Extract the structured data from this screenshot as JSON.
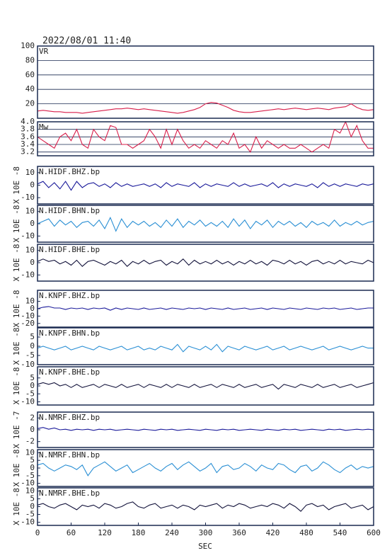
{
  "chart_data": {
    "type": "line",
    "title": "2022/08/01 11:40",
    "xlabel": "SEC",
    "xlim": [
      0,
      600
    ],
    "xticks": [
      0,
      60,
      120,
      180,
      240,
      300,
      360,
      420,
      480,
      540,
      600
    ],
    "x": [
      0,
      10,
      20,
      30,
      40,
      50,
      60,
      70,
      80,
      90,
      100,
      110,
      120,
      130,
      140,
      150,
      160,
      170,
      180,
      190,
      200,
      210,
      220,
      230,
      240,
      250,
      260,
      270,
      280,
      290,
      300,
      310,
      320,
      330,
      340,
      350,
      360,
      370,
      380,
      390,
      400,
      410,
      420,
      430,
      440,
      450,
      460,
      470,
      480,
      490,
      500,
      510,
      520,
      530,
      540,
      550,
      560,
      570,
      580,
      590,
      600
    ],
    "panels": [
      {
        "name": "VR",
        "color": "#d81e4a",
        "grid": true,
        "ylim": [
          0,
          100
        ],
        "yticks": [
          20,
          40,
          60,
          80,
          100
        ],
        "values": [
          10,
          11,
          10,
          9,
          9,
          8,
          8,
          8,
          7,
          8,
          9,
          10,
          11,
          12,
          13,
          13,
          14,
          13,
          12,
          13,
          12,
          11,
          10,
          9,
          8,
          7,
          8,
          10,
          12,
          15,
          20,
          22,
          21,
          18,
          15,
          11,
          9,
          8,
          8,
          9,
          10,
          11,
          12,
          13,
          12,
          13,
          14,
          13,
          12,
          13,
          14,
          13,
          12,
          14,
          15,
          16,
          20,
          15,
          12,
          11,
          12
        ]
      },
      {
        "name": "Mw",
        "color": "#d81e4a",
        "grid": true,
        "ylim": [
          3.1,
          4.0
        ],
        "yticks": [
          3.2,
          3.4,
          3.6,
          3.8,
          {
            "value": 4,
            "label": "4.0"
          }
        ],
        "values": [
          3.6,
          3.5,
          3.4,
          3.3,
          3.6,
          3.7,
          3.5,
          3.8,
          3.4,
          3.3,
          3.8,
          3.6,
          3.5,
          3.9,
          3.85,
          3.4,
          3.4,
          3.3,
          3.4,
          3.5,
          3.8,
          3.6,
          3.3,
          3.8,
          3.4,
          3.8,
          3.5,
          3.3,
          3.4,
          3.3,
          3.5,
          3.4,
          3.3,
          3.5,
          3.4,
          3.7,
          3.3,
          3.4,
          3.2,
          3.6,
          3.3,
          3.5,
          3.4,
          3.3,
          3.4,
          3.3,
          3.3,
          3.4,
          3.3,
          3.2,
          3.3,
          3.4,
          3.3,
          3.8,
          3.7,
          4.0,
          3.6,
          3.9,
          3.5,
          3.3,
          3.3
        ]
      },
      {
        "name": "N.HIDF.BHZ.bp",
        "ylabel": "X 10E -8",
        "color": "#1a1a9a",
        "grid": false,
        "ylim": [
          -15,
          15
        ],
        "yticks": [
          -10,
          0,
          10
        ],
        "values": [
          1,
          3,
          -2,
          2,
          -3,
          3,
          -4,
          3,
          -2,
          1,
          2,
          -1,
          1,
          -2,
          2,
          -1,
          1,
          -1,
          0,
          1,
          -1,
          1,
          -2,
          2,
          -1,
          1,
          0,
          -1,
          2,
          -2,
          1,
          -1,
          1,
          0,
          -1,
          2,
          -1,
          1,
          -1,
          0,
          1,
          -1,
          2,
          -2,
          1,
          -1,
          1,
          0,
          -1,
          1,
          -2,
          2,
          -1,
          1,
          -1,
          1,
          0,
          -1,
          1,
          0,
          1
        ]
      },
      {
        "name": "N.HIDF.BHN.bp",
        "ylabel": "X 10E -8",
        "color": "#2a8fd4",
        "grid": false,
        "ylim": [
          -15,
          15
        ],
        "yticks": [
          -10,
          0,
          10
        ],
        "values": [
          0,
          2,
          4,
          -2,
          3,
          -1,
          2,
          -3,
          1,
          2,
          -2,
          3,
          -4,
          5,
          -6,
          4,
          -3,
          2,
          -1,
          2,
          -2,
          1,
          -3,
          3,
          -2,
          4,
          -3,
          2,
          -1,
          3,
          -2,
          1,
          -2,
          2,
          -3,
          4,
          -2,
          3,
          -4,
          2,
          -1,
          3,
          -3,
          2,
          -1,
          2,
          -2,
          1,
          -3,
          2,
          -1,
          1,
          -2,
          3,
          -2,
          1,
          -1,
          2,
          -1,
          1,
          2
        ]
      },
      {
        "name": "N.HIDF.BHE.bp",
        "ylabel": "X 10E -8",
        "color": "#14143c",
        "grid": false,
        "ylim": [
          -15,
          15
        ],
        "yticks": [
          -10,
          0,
          10
        ],
        "values": [
          1,
          3,
          1,
          2,
          -1,
          1,
          -2,
          2,
          -3,
          1,
          2,
          0,
          -2,
          1,
          -1,
          2,
          -3,
          1,
          -1,
          2,
          -1,
          1,
          2,
          -2,
          1,
          -1,
          3,
          -2,
          2,
          -1,
          1,
          -1,
          2,
          -1,
          1,
          -2,
          1,
          -1,
          2,
          -1,
          1,
          -2,
          2,
          1,
          -1,
          2,
          -1,
          1,
          -2,
          1,
          2,
          -1,
          1,
          -1,
          2,
          -1,
          1,
          0,
          -1,
          2,
          0
        ]
      },
      {
        "name": "N.KNPF.BHZ.bp",
        "ylabel": "X 10E -8",
        "color": "#1a1a9a",
        "grid": false,
        "ylim": [
          -25,
          25
        ],
        "yticks": [
          -20,
          -10,
          0,
          10
        ],
        "values": [
          0,
          2,
          3,
          1,
          1,
          -1,
          1,
          0,
          1,
          -1,
          1,
          0,
          1,
          -2,
          1,
          -1,
          1,
          0,
          -1,
          1,
          -1,
          0,
          1,
          -1,
          1,
          0,
          -1,
          1,
          0,
          1,
          -1,
          1,
          0,
          -1,
          1,
          -1,
          0,
          1,
          -1,
          0,
          1,
          -1,
          1,
          0,
          -1,
          1,
          0,
          -1,
          1,
          0,
          -1,
          1,
          0,
          1,
          -1,
          0,
          1,
          -1,
          0,
          1,
          1
        ]
      },
      {
        "name": "N.KNPF.BHN.bp",
        "ylabel": "X 10E -8",
        "color": "#2a8fd4",
        "grid": false,
        "ylim": [
          -10,
          10
        ],
        "yticks": [
          -10,
          -5,
          0,
          5
        ],
        "values": [
          -1,
          0,
          -1,
          -2,
          -1,
          0,
          -2,
          -1,
          0,
          -1,
          -2,
          0,
          -1,
          -2,
          -1,
          0,
          -2,
          -1,
          0,
          -2,
          -1,
          -2,
          0,
          -1,
          -2,
          1,
          -3,
          0,
          -1,
          -2,
          0,
          -2,
          1,
          -3,
          0,
          -1,
          -2,
          0,
          -1,
          -2,
          -1,
          0,
          -2,
          -1,
          0,
          -2,
          -1,
          0,
          -1,
          -2,
          -1,
          0,
          -2,
          -1,
          0,
          -1,
          -2,
          -1,
          0,
          -1,
          -1
        ]
      },
      {
        "name": "N.KNPF.BHE.bp",
        "ylabel": "X 10E -8",
        "color": "#14143c",
        "grid": false,
        "ylim": [
          -12,
          12
        ],
        "yticks": [
          -10,
          -5,
          0,
          5
        ],
        "values": [
          1,
          2,
          1,
          2,
          0,
          1,
          -1,
          1,
          -1,
          0,
          1,
          -1,
          1,
          0,
          -1,
          1,
          -1,
          0,
          1,
          -1,
          1,
          0,
          -1,
          1,
          -1,
          1,
          0,
          -1,
          1,
          -1,
          0,
          1,
          -1,
          1,
          0,
          -1,
          1,
          -1,
          0,
          1,
          -1,
          0,
          1,
          -2,
          1,
          0,
          -1,
          1,
          0,
          -1,
          1,
          -1,
          0,
          1,
          -1,
          0,
          1,
          -1,
          0,
          1,
          2
        ]
      },
      {
        "name": "N.NMRF.BHZ.bp",
        "ylabel": "X 10E -7",
        "color": "#1a1a9a",
        "grid": false,
        "ylim": [
          -3,
          3
        ],
        "yticks": [
          -2,
          0,
          2
        ],
        "values": [
          0.2,
          0.4,
          0.1,
          0.3,
          0,
          0.1,
          -0.1,
          0.1,
          0,
          0.1,
          -0.1,
          0.1,
          0,
          0.1,
          -0.1,
          0,
          0.1,
          0,
          -0.1,
          0.1,
          0,
          -0.1,
          0.1,
          0,
          0.1,
          -0.1,
          0,
          0.1,
          0,
          -0.1,
          0.1,
          0,
          -0.1,
          0.1,
          0,
          0.1,
          -0.1,
          0,
          0.1,
          0,
          -0.1,
          0.1,
          0,
          -0.1,
          0.1,
          0,
          0.1,
          -0.1,
          0,
          0.1,
          0,
          -0.1,
          0.1,
          0,
          0.1,
          -0.1,
          0,
          0.1,
          0,
          0.1,
          0
        ]
      },
      {
        "name": "N.NMRF.BHN.bp",
        "ylabel": "X 10E -8",
        "color": "#2a8fd4",
        "grid": false,
        "ylim": [
          -12,
          12
        ],
        "yticks": [
          -10,
          -5,
          0,
          5,
          10
        ],
        "values": [
          2,
          3,
          0,
          -2,
          0,
          2,
          1,
          -1,
          2,
          -5,
          0,
          2,
          4,
          1,
          -2,
          0,
          2,
          -3,
          -1,
          1,
          3,
          0,
          -2,
          1,
          3,
          -1,
          2,
          4,
          1,
          -2,
          0,
          3,
          -3,
          1,
          2,
          -1,
          0,
          3,
          1,
          -2,
          2,
          0,
          -1,
          3,
          2,
          -1,
          -3,
          1,
          2,
          -2,
          0,
          4,
          2,
          -1,
          -3,
          0,
          2,
          -1,
          1,
          0,
          1
        ]
      },
      {
        "name": "N.NMRF.BHE.bp",
        "ylabel": "X 10E -8",
        "color": "#14143c",
        "grid": false,
        "ylim": [
          -12,
          12
        ],
        "yticks": [
          -10,
          -5,
          0,
          5,
          10
        ],
        "values": [
          1,
          2,
          0,
          -1,
          1,
          2,
          0,
          -2,
          1,
          0,
          1,
          -1,
          2,
          1,
          -1,
          0,
          2,
          3,
          0,
          -1,
          1,
          2,
          -1,
          0,
          1,
          -1,
          1,
          0,
          -2,
          1,
          0,
          1,
          2,
          -1,
          1,
          0,
          2,
          1,
          -1,
          0,
          1,
          0,
          2,
          1,
          -1,
          2,
          0,
          -3,
          1,
          2,
          0,
          1,
          -2,
          0,
          1,
          2,
          -1,
          0,
          1,
          -2,
          0
        ]
      }
    ]
  }
}
